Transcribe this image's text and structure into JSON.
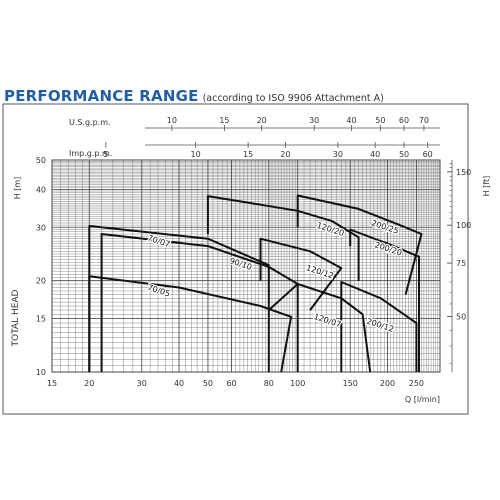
{
  "header": {
    "title": "PERFORMANCE RANGE",
    "subtitle": "(according to ISO 9906 Attachment A)"
  },
  "chart_data": {
    "type": "line",
    "title": "PERFORMANCE RANGE",
    "subtitle": "(according to ISO 9906 Attachment A)",
    "x_scale": "log",
    "y_scale": "log",
    "xlim": [
      15,
      300
    ],
    "ylim": [
      10,
      50
    ],
    "grid": true,
    "xlabel": "Q [l/min]",
    "ylabel": "TOTAL HEAD",
    "y_left_unit": "H [m]",
    "y_right_unit": "H [ft]",
    "x_ticks": [
      "15",
      "20",
      "30",
      "40",
      "50",
      "60",
      "80",
      "100",
      "150",
      "200",
      "250"
    ],
    "x_tick_values": [
      15,
      20,
      30,
      40,
      50,
      60,
      80,
      100,
      150,
      200,
      250
    ],
    "y_ticks": [
      "10",
      "15",
      "20",
      "30",
      "40",
      "50"
    ],
    "y_tick_values": [
      10,
      15,
      20,
      30,
      40,
      50
    ],
    "y_right_ticks": [
      "50",
      "75",
      "100",
      "150"
    ],
    "y_right_tick_values": [
      50,
      75,
      100,
      150
    ],
    "top_axis_usgpm_label": "U.S.g.p.m.",
    "top_axis_usgpm_ticks": [
      "10",
      "15",
      "20",
      "30",
      "40",
      "50",
      "60",
      "70"
    ],
    "top_axis_usgpm_values": [
      10,
      15,
      20,
      30,
      40,
      50,
      60,
      70
    ],
    "top_axis_impgpm_label": "Imp.g.p.m.",
    "top_axis_impgpm_ticks": [
      "5",
      "10",
      "15",
      "20",
      "30",
      "40",
      "50",
      "60"
    ],
    "top_axis_impgpm_values": [
      5,
      10,
      15,
      20,
      30,
      40,
      50,
      60
    ],
    "series": [
      {
        "name": "70/07",
        "points": [
          [
            20,
            10
          ],
          [
            20,
            30.3
          ],
          [
            50,
            27.5
          ],
          [
            80,
            22.5
          ],
          [
            80,
            10
          ]
        ],
        "label_at": [
          34,
          26.5
        ]
      },
      {
        "name": "70/05",
        "points": [
          [
            20,
            10
          ],
          [
            20,
            20.7
          ],
          [
            40,
            19
          ],
          [
            75,
            16.5
          ],
          [
            95,
            15.2
          ],
          [
            88,
            10
          ]
        ],
        "label_at": [
          34,
          18.2
        ]
      },
      {
        "name": "90/10",
        "points": [
          [
            22,
            10
          ],
          [
            22,
            28.5
          ],
          [
            50,
            26
          ],
          [
            80,
            22.2
          ],
          [
            100,
            19.5
          ],
          [
            80,
            16
          ]
        ],
        "label_at": [
          64,
          22.3
        ]
      },
      {
        "name": "120/20",
        "points": [
          [
            50,
            28.5
          ],
          [
            50,
            38
          ],
          [
            100,
            34
          ],
          [
            130,
            31.5
          ],
          [
            160,
            27.8
          ],
          [
            160,
            20
          ]
        ],
        "label_at": [
          128,
          29
        ]
      },
      {
        "name": "120/12",
        "points": [
          [
            75,
            20
          ],
          [
            75,
            27.5
          ],
          [
            110,
            25
          ],
          [
            140,
            22
          ],
          [
            110,
            16
          ]
        ],
        "label_at": [
          118,
          21
        ]
      },
      {
        "name": "120/07",
        "points": [
          [
            100,
            10
          ],
          [
            100,
            19.5
          ],
          [
            140,
            17.5
          ],
          [
            165,
            15.5
          ],
          [
            175,
            10
          ]
        ],
        "label_at": [
          125,
          14.5
        ]
      },
      {
        "name": "200/25",
        "points": [
          [
            100,
            30
          ],
          [
            100,
            38.2
          ],
          [
            160,
            34.5
          ],
          [
            220,
            30.5
          ],
          [
            260,
            28.5
          ],
          [
            230,
            18
          ]
        ],
        "label_at": [
          195,
          29.5
        ]
      },
      {
        "name": "200/20",
        "points": [
          [
            150,
            26
          ],
          [
            150,
            29.5
          ],
          [
            200,
            26.5
          ],
          [
            255,
            24
          ],
          [
            255,
            10
          ]
        ],
        "label_at": [
          200,
          25
        ]
      },
      {
        "name": "200/12",
        "points": [
          [
            140,
            10
          ],
          [
            140,
            19.8
          ],
          [
            190,
            17.5
          ],
          [
            250,
            14.5
          ],
          [
            250,
            10
          ]
        ],
        "label_at": [
          188,
          14
        ]
      }
    ]
  }
}
